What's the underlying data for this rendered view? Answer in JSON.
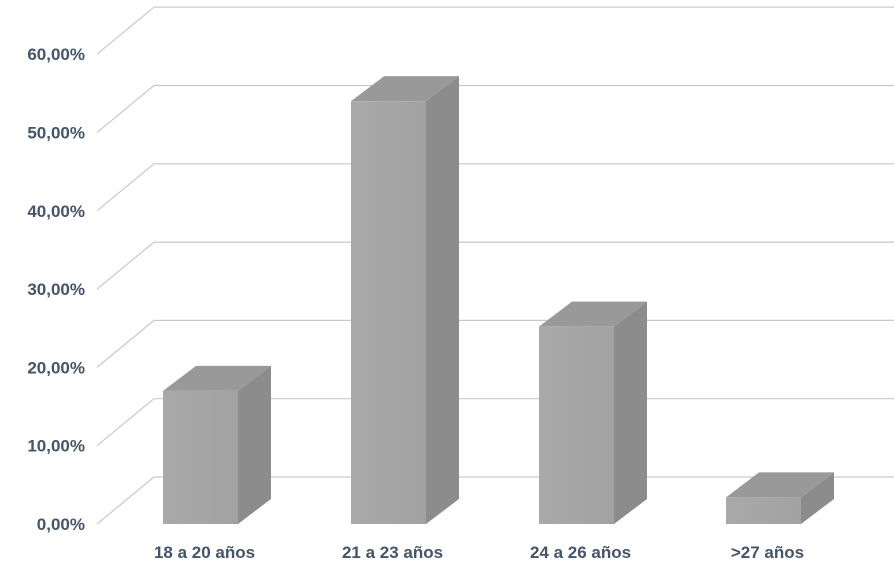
{
  "chart_data": {
    "type": "bar",
    "style": "3d-column",
    "categories": [
      "18 a 20 años",
      "21 a 23 años",
      "24 a 26 años",
      ">27 años"
    ],
    "values": [
      17.0,
      54.0,
      25.2,
      3.4
    ],
    "value_format": "percent",
    "yticks": [
      "0,00%",
      "10,00%",
      "20,00%",
      "30,00%",
      "40,00%",
      "50,00%",
      "60,00%"
    ],
    "ylim": [
      0,
      65
    ],
    "title": "",
    "xlabel": "",
    "ylabel": "",
    "grid": true,
    "legend": "none",
    "colors": {
      "bar_front": "#a6a6a6",
      "bar_side": "#8c8c8c",
      "bar_top": "#999999",
      "grid": "#c9c9c9",
      "label": "#44546a"
    }
  }
}
